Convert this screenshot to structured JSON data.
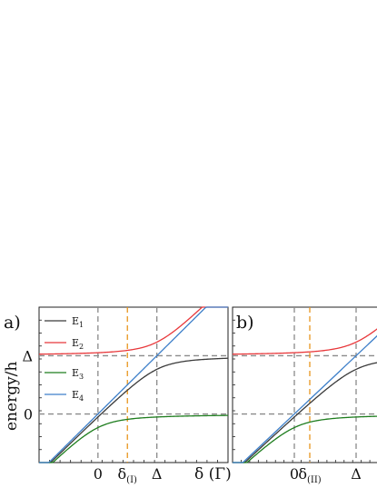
{
  "chart_data": [
    {
      "type": "line",
      "panel_label": "a)",
      "ylabel": "energy/h",
      "x_tick_labels": [
        {
          "text": "0",
          "x": 0
        },
        {
          "text": "δ",
          "sub": "(I)",
          "x": 0.6
        },
        {
          "text": "Δ",
          "x": 1.2
        }
      ],
      "xlabel": "δ (Γ)",
      "y_tick_labels": [
        {
          "text": "Δ",
          "y": 1.2
        },
        {
          "text": "0",
          "y": 0
        }
      ],
      "xlim": [
        -1.2,
        2.65
      ],
      "ylim": [
        -1.0,
        2.2
      ],
      "coupling": 0.28,
      "vertical_refs": [
        {
          "x": 0,
          "color": "#8a8a8a"
        },
        {
          "x": 0.6,
          "color": "#e8961e"
        },
        {
          "x": 1.2,
          "color": "#8a8a8a"
        }
      ],
      "horizontal_refs": [
        {
          "y": 0,
          "color": "#8a8a8a"
        },
        {
          "y": 1.2,
          "color": "#8a8a8a"
        }
      ],
      "series": [
        {
          "name": "E",
          "sub": "1",
          "color": "#3a3a3a"
        },
        {
          "name": "E",
          "sub": "2",
          "color": "#e8383b"
        },
        {
          "name": "E",
          "sub": "3",
          "color": "#1e7d1e"
        },
        {
          "name": "E",
          "sub": "4",
          "color": "#3d7fc9"
        }
      ],
      "legend": "top-left"
    },
    {
      "type": "line",
      "panel_label": "b)",
      "ylabel": "",
      "x_tick_labels": [
        {
          "text": "0",
          "x": 0
        },
        {
          "text": "δ",
          "sub": "(II)",
          "x": 0.3
        },
        {
          "text": "Δ",
          "x": 1.2
        }
      ],
      "xlabel": "",
      "y_tick_labels": [],
      "xlim": [
        -1.2,
        1.8
      ],
      "ylim": [
        -1.0,
        2.2
      ],
      "coupling": 0.28,
      "vertical_refs": [
        {
          "x": 0,
          "color": "#8a8a8a"
        },
        {
          "x": 0.3,
          "color": "#e8961e"
        },
        {
          "x": 1.2,
          "color": "#8a8a8a"
        }
      ],
      "horizontal_refs": [
        {
          "y": 0,
          "color": "#8a8a8a"
        },
        {
          "y": 1.2,
          "color": "#8a8a8a"
        }
      ],
      "series": [
        {
          "color": "#3a3a3a"
        },
        {
          "color": "#e8383b"
        },
        {
          "color": "#1e7d1e"
        },
        {
          "color": "#3d7fc9"
        }
      ],
      "legend": "none"
    }
  ]
}
